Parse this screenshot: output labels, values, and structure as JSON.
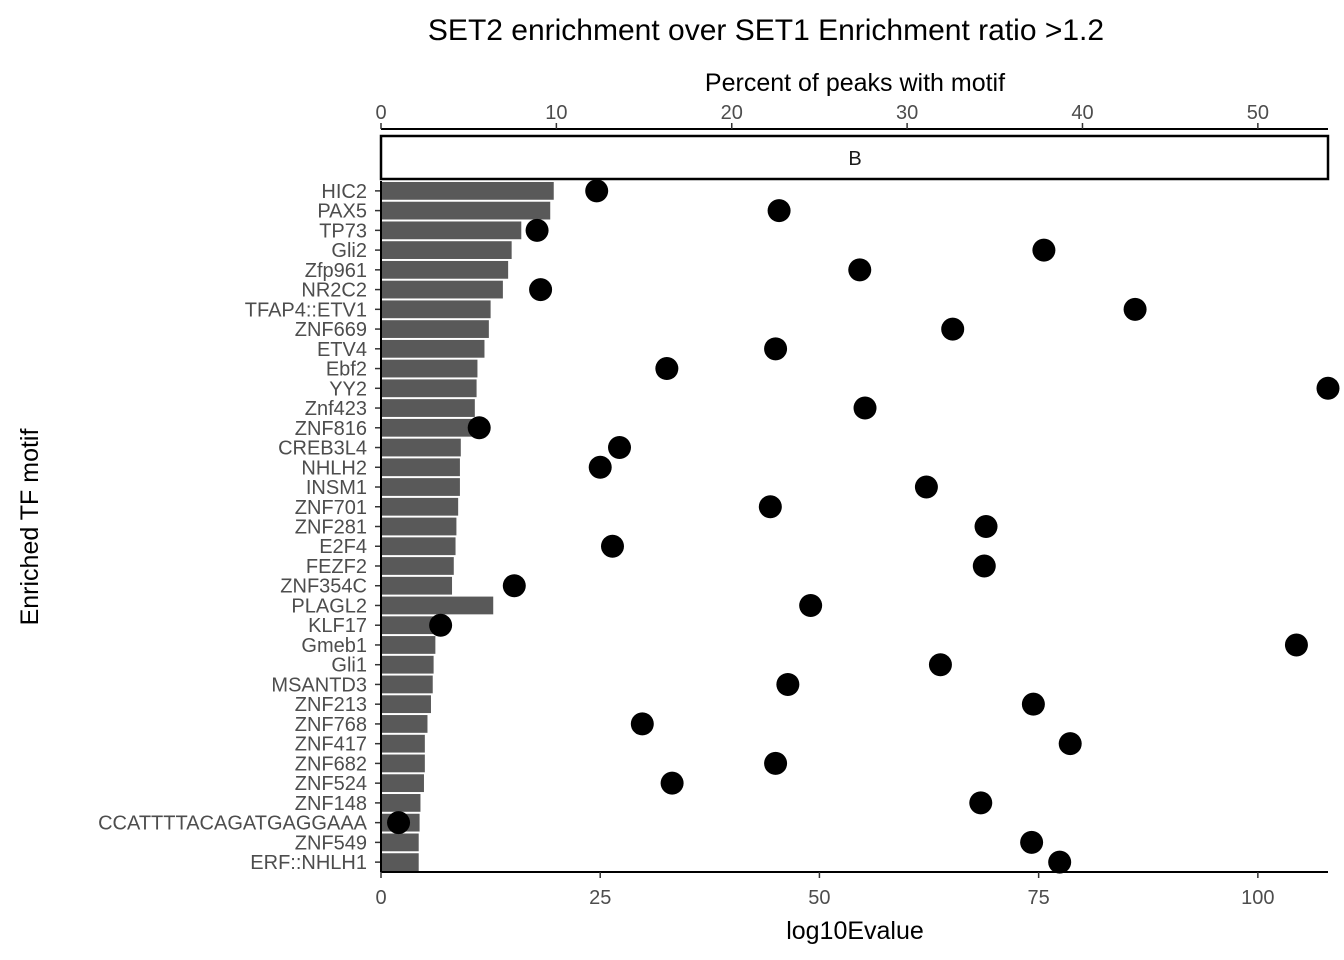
{
  "chart_data": {
    "type": "bar",
    "title": "SET2 enrichment over SET1 Enrichment ratio >1.2",
    "facet_label": "B",
    "xlabel_bottom": "log10Evalue",
    "xlabel_top": "Percent of peaks with motif",
    "ylabel": "Enriched TF motif",
    "bottom_axis": {
      "min": 0,
      "max": 108,
      "ticks": [
        0,
        25,
        50,
        75,
        100
      ]
    },
    "top_axis": {
      "min": 0,
      "max": 54,
      "ticks": [
        0,
        10,
        20,
        30,
        40,
        50
      ]
    },
    "categories": [
      "HIC2",
      "PAX5",
      "TP73",
      "Gli2",
      "Zfp961",
      "NR2C2",
      "TFAP4::ETV1",
      "ZNF669",
      "ETV4",
      "Ebf2",
      "YY2",
      "Znf423",
      "ZNF816",
      "CREB3L4",
      "NHLH2",
      "INSM1",
      "ZNF701",
      "ZNF281",
      "E2F4",
      "FEZF2",
      "ZNF354C",
      "PLAGL2",
      "KLF17",
      "Gmeb1",
      "Gli1",
      "MSANTD3",
      "ZNF213",
      "ZNF768",
      "ZNF417",
      "ZNF682",
      "ZNF524",
      "ZNF148",
      "CCATTTTACAGATGAGGAAA",
      "ZNF549",
      "ERF::NHLH1"
    ],
    "series": [
      {
        "type": "bar",
        "axis": "bottom",
        "color": "#595959",
        "values": [
          19.7,
          19.3,
          16.0,
          14.9,
          14.5,
          13.9,
          12.5,
          12.3,
          11.8,
          11.0,
          10.9,
          10.7,
          10.6,
          9.1,
          9.0,
          9.0,
          8.8,
          8.6,
          8.5,
          8.3,
          8.1,
          12.8,
          6.1,
          6.2,
          6.0,
          5.9,
          5.7,
          5.3,
          5.0,
          5.0,
          4.9,
          4.5,
          4.4,
          4.3,
          4.3
        ]
      },
      {
        "type": "scatter",
        "axis": "top",
        "color": "#000000",
        "values": [
          12.3,
          22.7,
          8.9,
          37.8,
          27.3,
          9.1,
          43.0,
          32.6,
          22.5,
          16.3,
          54.0,
          27.6,
          5.6,
          13.6,
          12.5,
          31.1,
          22.2,
          34.5,
          13.2,
          34.4,
          7.6,
          24.5,
          3.4,
          52.2,
          31.9,
          23.2,
          37.2,
          14.9,
          39.3,
          22.5,
          16.6,
          34.2,
          1.0,
          37.1,
          38.7
        ]
      }
    ]
  }
}
